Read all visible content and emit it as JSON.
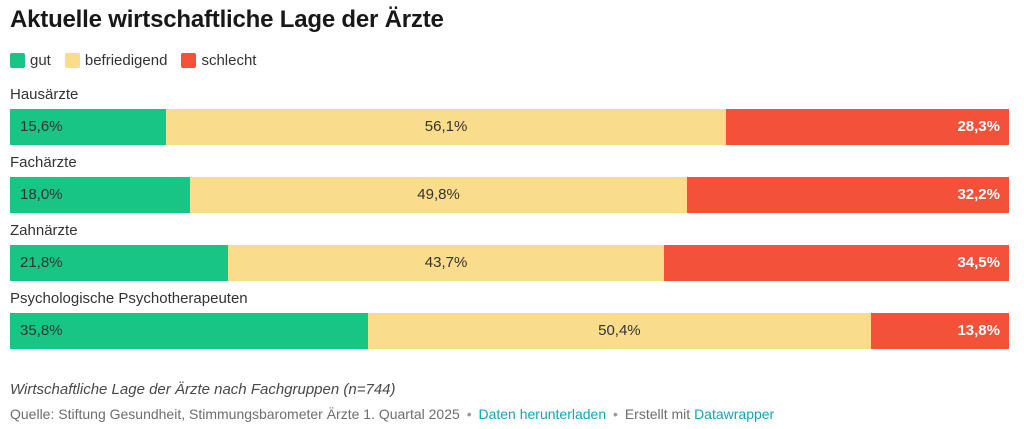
{
  "title": "Aktuelle wirtschaftliche Lage der Ärzte",
  "legend": [
    {
      "label": "gut",
      "color": "#18c584"
    },
    {
      "label": "befriedigend",
      "color": "#fadd8c"
    },
    {
      "label": "schlecht",
      "color": "#f4513b"
    }
  ],
  "chart_data": {
    "type": "bar",
    "variant": "horizontal-stacked",
    "title": "Aktuelle wirtschaftliche Lage der Ärzte",
    "categories": [
      "Hausärzte",
      "Fachärzte",
      "Zahnärzte",
      "Psychologische Psychotherapeuten"
    ],
    "series": [
      {
        "name": "gut",
        "color": "#18c584",
        "values": [
          15.6,
          18.0,
          21.8,
          35.8
        ],
        "labels": [
          "15,6%",
          "18,0%",
          "21,8%",
          "35,8%"
        ]
      },
      {
        "name": "befriedigend",
        "color": "#fadd8c",
        "values": [
          56.1,
          49.8,
          43.7,
          50.4
        ],
        "labels": [
          "56,1%",
          "49,8%",
          "43,7%",
          "50,4%"
        ]
      },
      {
        "name": "schlecht",
        "color": "#f4513b",
        "values": [
          28.3,
          32.2,
          34.5,
          13.8
        ],
        "labels": [
          "28,3%",
          "32,2%",
          "34,5%",
          "13,8%"
        ]
      }
    ],
    "xlim": [
      0,
      100
    ],
    "unit": "%",
    "grid": false,
    "legend_position": "top"
  },
  "footer": {
    "note": "Wirtschaftliche Lage der Ärzte nach Fachgruppen (n=744)",
    "source_prefix": "Quelle: Stiftung Gesundheit, Stimmungsbarometer Ärzte 1. Quartal 2025",
    "separator": "•",
    "download_link": "Daten herunterladen",
    "created_with": "Erstellt mit",
    "datawrapper_link": "Datawrapper"
  }
}
